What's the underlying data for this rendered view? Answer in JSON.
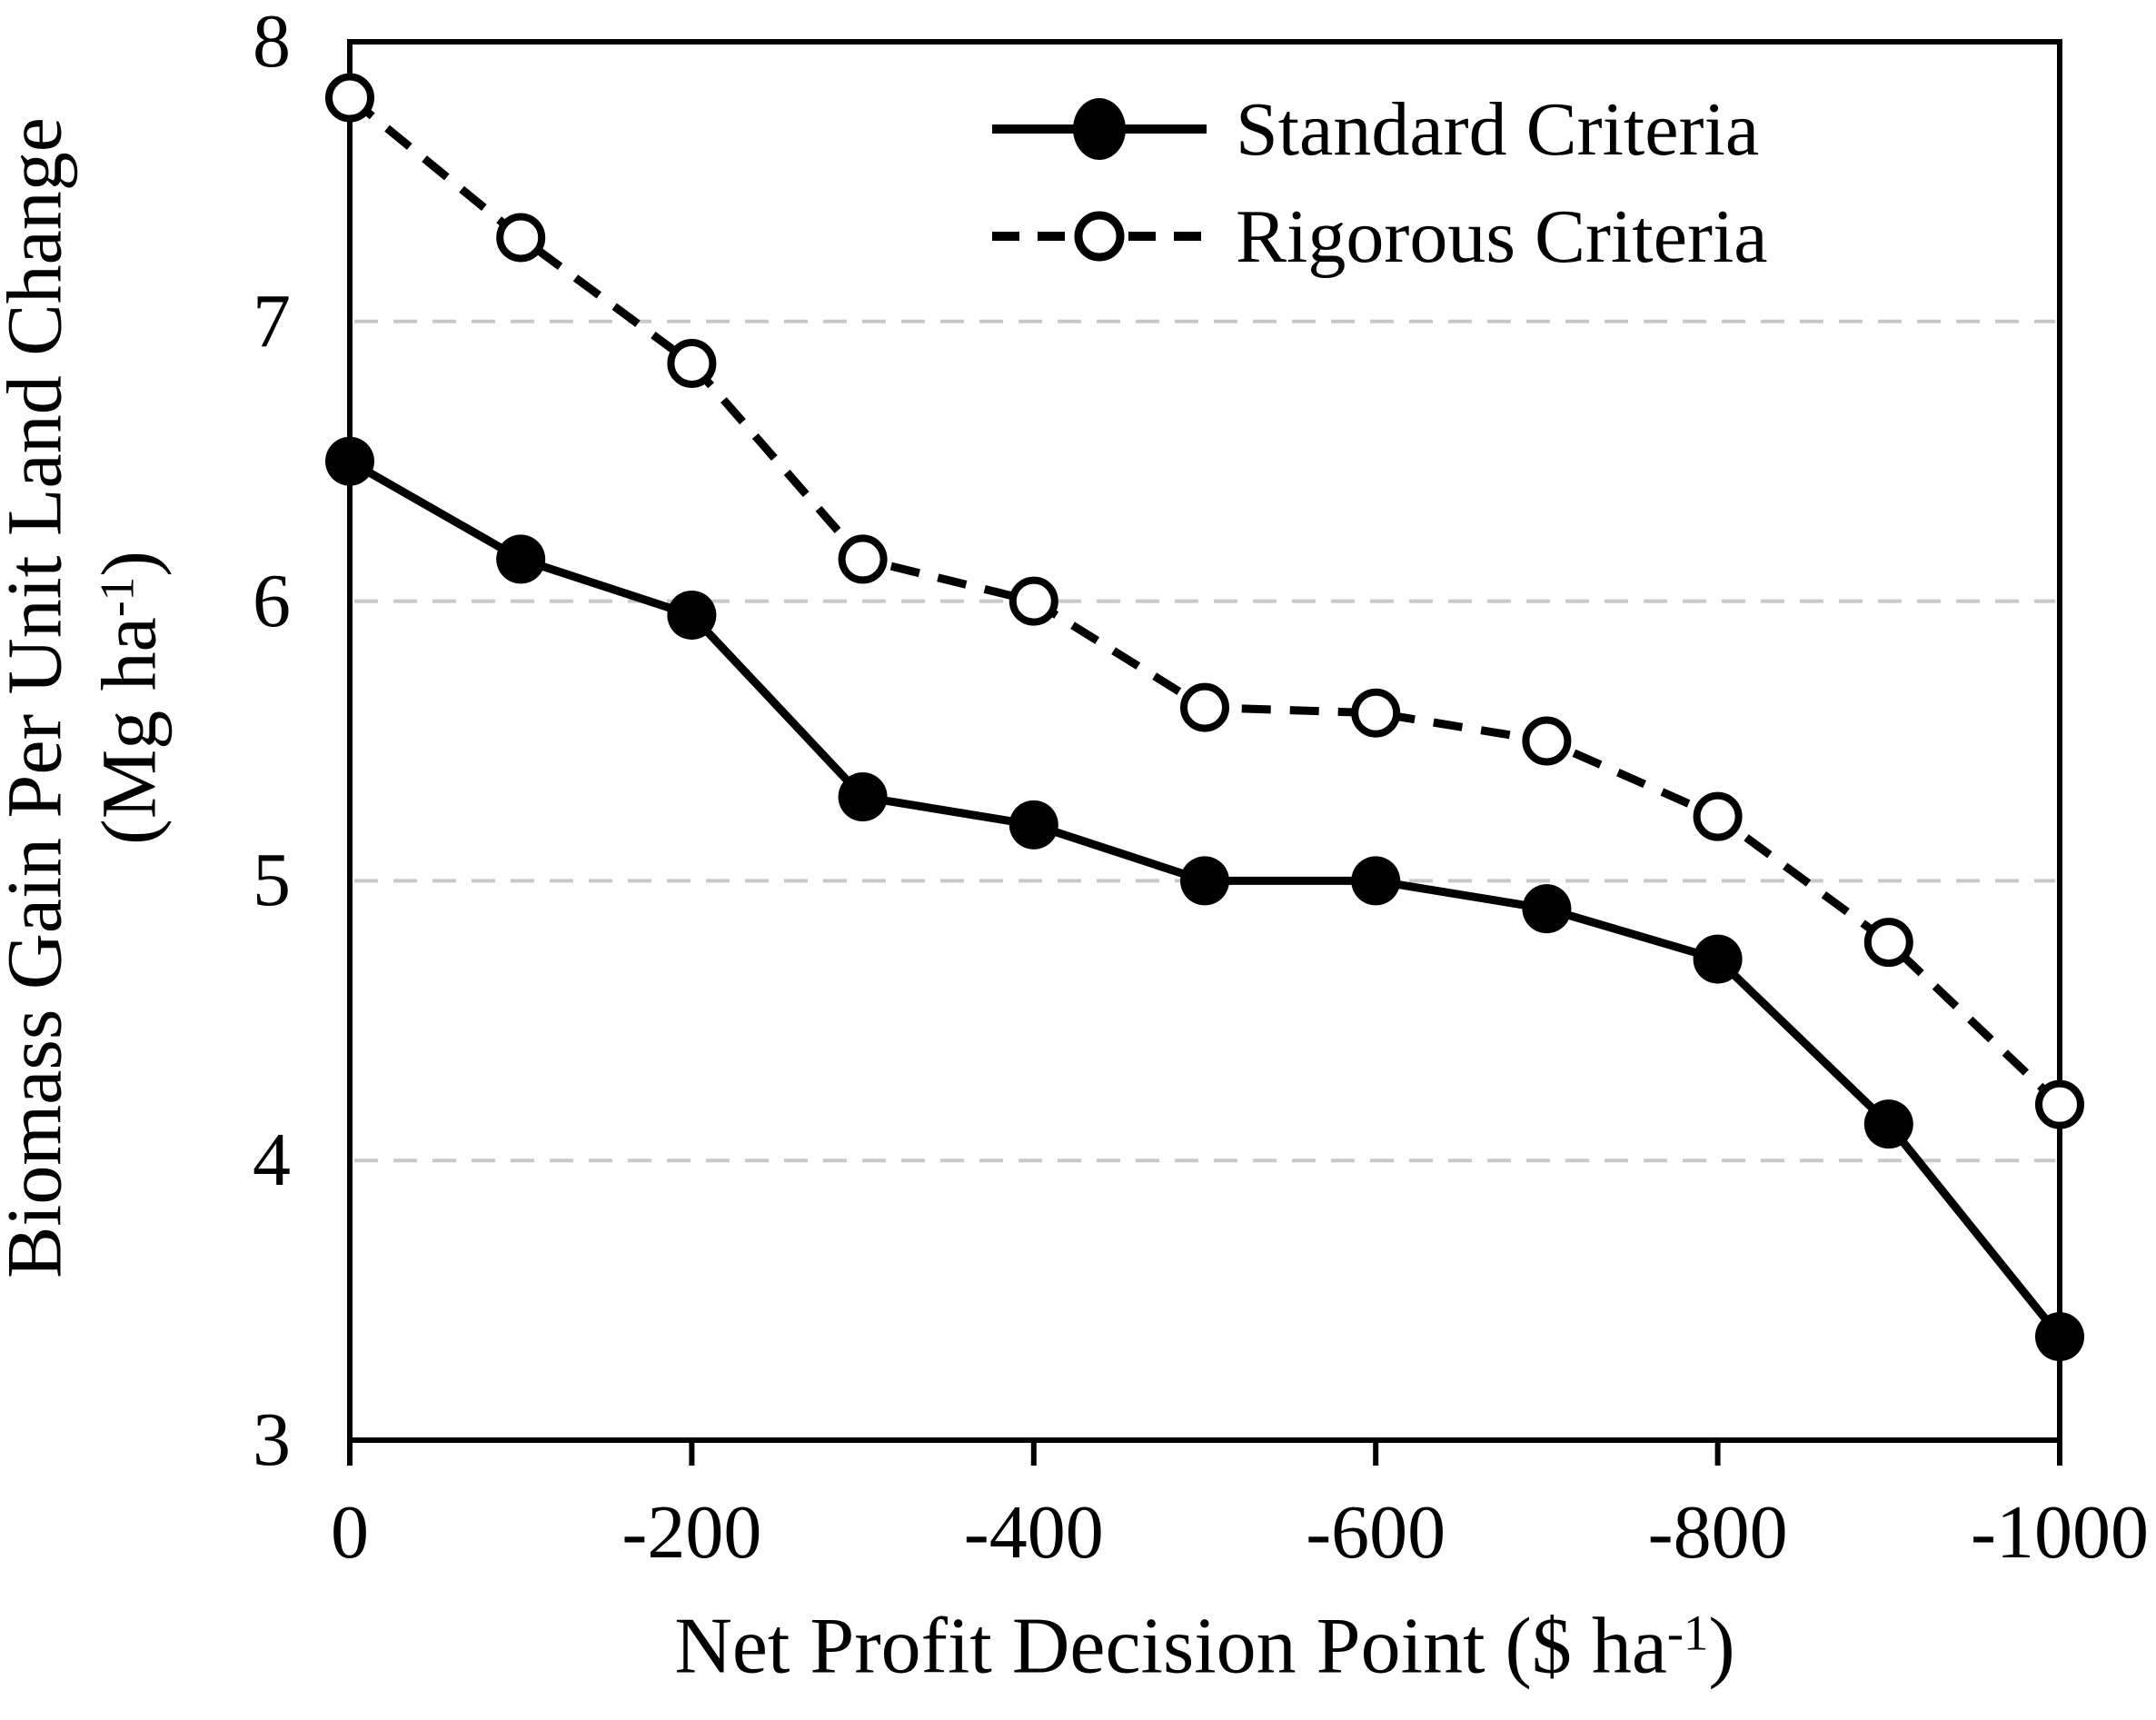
{
  "chart_data": {
    "type": "line",
    "title": "",
    "xlabel": {
      "prefix": "Net Profit Decision Point ($ ha",
      "superscript": "-1",
      "suffix": ")"
    },
    "ylabel": {
      "line1": "Biomass Gain Per Unit Land Change",
      "line2_prefix": "(Mg ha",
      "superscript": "-1",
      "line2_suffix": ")"
    },
    "x": [
      0,
      -100,
      -200,
      -300,
      -400,
      -500,
      -600,
      -700,
      -800,
      -900,
      -1000
    ],
    "series": [
      {
        "name": "Standard Criteria",
        "line_style": "solid",
        "marker": "filled-circle",
        "values": [
          6.5,
          6.15,
          5.95,
          5.3,
          5.2,
          5.0,
          5.0,
          4.9,
          4.72,
          4.13,
          3.37
        ]
      },
      {
        "name": "Rigorous Criteria",
        "line_style": "dashed",
        "marker": "open-circle",
        "values": [
          7.8,
          7.3,
          6.85,
          6.15,
          6.0,
          5.62,
          5.6,
          5.5,
          5.23,
          4.78,
          4.2
        ]
      }
    ],
    "xlim": [
      0,
      -1000
    ],
    "ylim": [
      3,
      8
    ],
    "x_tick_values": [
      0,
      -200,
      -400,
      -600,
      -800,
      -1000
    ],
    "x_tick_labels": [
      "0",
      "-200",
      "-400",
      "-600",
      "-800",
      "-1000"
    ],
    "y_tick_values": [
      8,
      7,
      6,
      5,
      4,
      3
    ],
    "y_tick_labels": [
      "8",
      "7",
      "6",
      "5",
      "4",
      "3"
    ],
    "gridlines": {
      "y_values": [
        7,
        6,
        5,
        4
      ],
      "style": "dashed"
    },
    "legend_position": "top-right-inside",
    "colors": {
      "line": "#000000",
      "marker_fill": "#000000",
      "open_marker_fill": "#ffffff",
      "grid": "#c8c8c8",
      "background": "#ffffff",
      "text": "#000000"
    }
  }
}
